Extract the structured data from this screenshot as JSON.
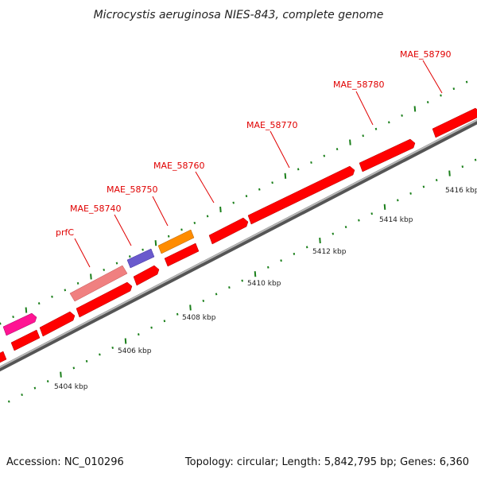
{
  "title": "Microcystis aeruginosa NIES-843, complete genome",
  "footer": {
    "accession": "Accession: NC_010296",
    "summary": "Topology: circular; Length: 5,842,795 bp; Genes: 6,360"
  },
  "scale_labels": [
    "5404 kbp",
    "5406 kbp",
    "5408 kbp",
    "5410 kbp",
    "5412 kbp",
    "5414 kbp",
    "5416 kbp"
  ],
  "gene_labels": [
    "prfC",
    "MAE_58740",
    "MAE_58750",
    "MAE_58760",
    "MAE_58770",
    "MAE_58780",
    "MAE_58790"
  ],
  "colors": {
    "gene": "#ff0000",
    "prfC": "#f08080",
    "pink_gene": "#ff1493",
    "purple_gene": "#6a5acd",
    "orange_gene": "#ff8c00",
    "backbone": "#808080",
    "tick": "#1a7f1a",
    "label": "#e00000"
  }
}
